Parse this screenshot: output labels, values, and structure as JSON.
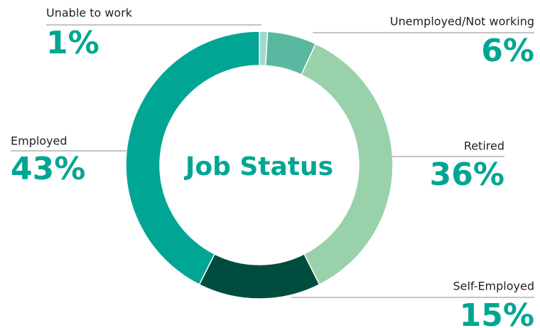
{
  "chart_data": {
    "type": "donut",
    "title": "Job Status",
    "categories": [
      "Unable to work",
      "Unemployed/Not working",
      "Retired",
      "Self-Employed",
      "Employed"
    ],
    "values": [
      1,
      6,
      36,
      15,
      43
    ],
    "value_labels": [
      "1%",
      "6%",
      "36%",
      "15%",
      "43%"
    ],
    "colors": [
      "#9fd9d3",
      "#5bb8a0",
      "#98d1aa",
      "#004d40",
      "#00a693"
    ]
  }
}
